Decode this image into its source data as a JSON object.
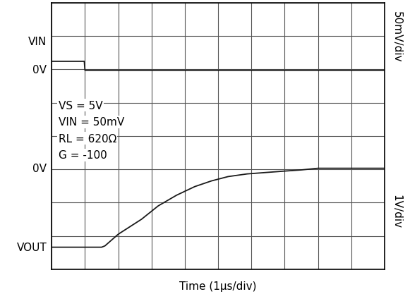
{
  "chart_data": {
    "type": "line",
    "x_label": "Time (1µs/div)",
    "xlim": [
      0,
      10
    ],
    "xticks": [
      0,
      1,
      2,
      3,
      4,
      5,
      6,
      7,
      8,
      9,
      10
    ],
    "ylim": [
      0,
      8
    ],
    "yticks": [
      0,
      1,
      2,
      3,
      4,
      5,
      6,
      7,
      8
    ],
    "grid": true,
    "tick_labels": false,
    "series": [
      {
        "name": "VIN",
        "color": "#1a1a1a",
        "x": [
          0,
          0.98,
          1.0,
          10
        ],
        "values": [
          6.24,
          6.24,
          5.97,
          5.97
        ]
      },
      {
        "name": "VOUT",
        "color": "#1a1a1a",
        "x": [
          0,
          1.0,
          1.5,
          1.6,
          2.0,
          2.7,
          3.2,
          3.75,
          4.3,
          4.8,
          5.3,
          5.87,
          6.4,
          6.93,
          7.5,
          8.0,
          9.0,
          10
        ],
        "values": [
          0.66,
          0.66,
          0.66,
          0.7,
          1.05,
          1.5,
          1.9,
          2.22,
          2.48,
          2.65,
          2.78,
          2.86,
          2.9,
          2.94,
          2.98,
          3.03,
          3.03,
          3.03
        ]
      }
    ],
    "level_labels": [
      {
        "text": "VIN",
        "y": 6.84
      },
      {
        "text": "0V",
        "y": 5.99
      },
      {
        "text": "0V",
        "y": 3.03
      },
      {
        "text": "VOUT",
        "y": 0.66
      }
    ],
    "scale_labels": [
      {
        "text": "50mV/div",
        "y": 7.0
      },
      {
        "text": "1V/div",
        "y": 1.75
      }
    ],
    "notes": [
      "VS = 5V",
      "VIN = 50mV",
      "RL = 620Ω",
      "G = -100"
    ]
  }
}
